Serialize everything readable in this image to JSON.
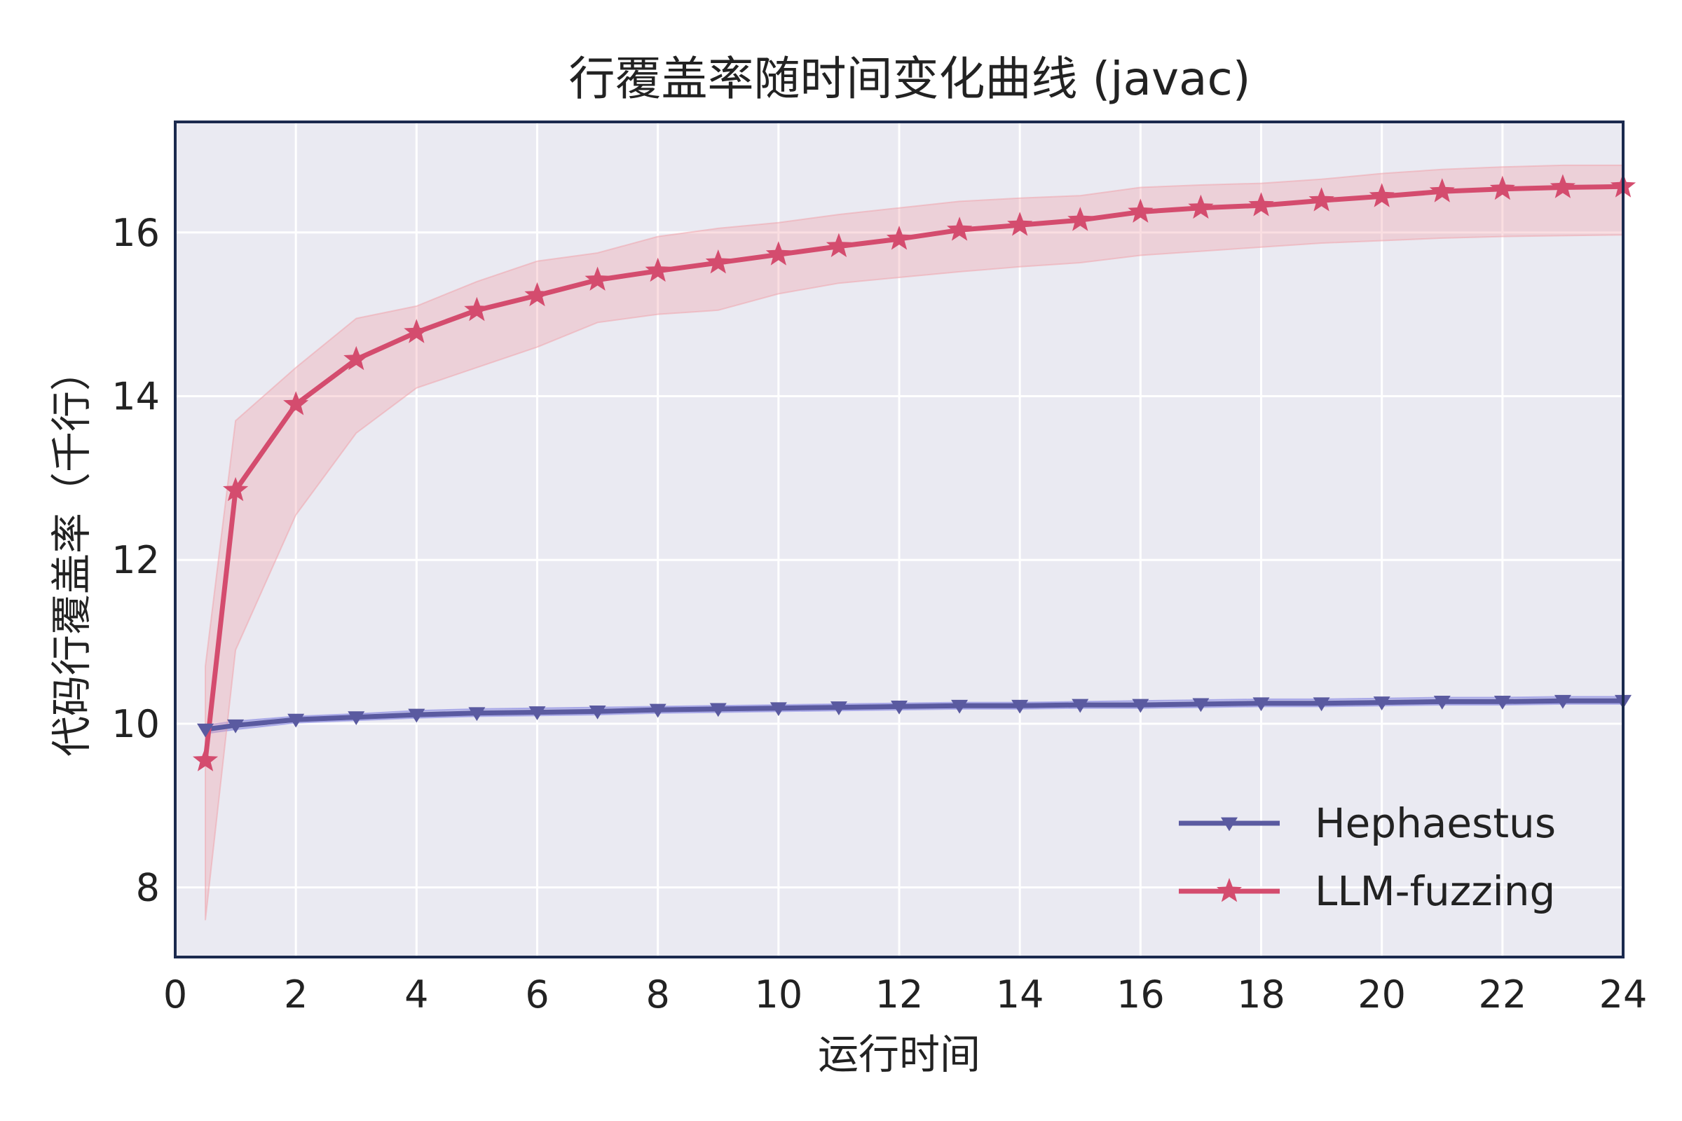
{
  "chart_data": {
    "type": "line",
    "title": "行覆盖率随时间变化曲线 (javac)",
    "xlabel": "运行时间",
    "ylabel": "代码行覆盖率（千行）",
    "xlim": [
      0,
      24
    ],
    "ylim": [
      7.15,
      17.35
    ],
    "xticks": [
      0,
      2,
      4,
      6,
      8,
      10,
      12,
      14,
      16,
      18,
      20,
      22,
      24
    ],
    "yticks": [
      8,
      10,
      12,
      14,
      16
    ],
    "grid": true,
    "legend_position": "lower-right",
    "x": [
      0.5,
      1,
      2,
      3,
      4,
      5,
      6,
      7,
      8,
      9,
      10,
      11,
      12,
      13,
      14,
      15,
      16,
      17,
      18,
      19,
      20,
      21,
      22,
      23,
      24
    ],
    "series": [
      {
        "name": "Hephaestus",
        "color": "#5a5aa0",
        "band_color": "#7b7be0",
        "marker": "triangle-down",
        "values": [
          9.93,
          9.98,
          10.05,
          10.08,
          10.11,
          10.13,
          10.14,
          10.15,
          10.17,
          10.18,
          10.19,
          10.2,
          10.21,
          10.22,
          10.22,
          10.23,
          10.23,
          10.24,
          10.25,
          10.25,
          10.26,
          10.27,
          10.27,
          10.28,
          10.28
        ],
        "band_low": [
          9.88,
          9.93,
          10.01,
          10.04,
          10.07,
          10.09,
          10.1,
          10.11,
          10.13,
          10.14,
          10.15,
          10.16,
          10.17,
          10.18,
          10.18,
          10.19,
          10.19,
          10.2,
          10.21,
          10.21,
          10.22,
          10.23,
          10.23,
          10.24,
          10.24
        ],
        "band_high": [
          9.98,
          10.03,
          10.09,
          10.12,
          10.16,
          10.18,
          10.19,
          10.2,
          10.21,
          10.22,
          10.23,
          10.24,
          10.25,
          10.26,
          10.26,
          10.27,
          10.28,
          10.29,
          10.3,
          10.3,
          10.31,
          10.32,
          10.32,
          10.33,
          10.33
        ]
      },
      {
        "name": "LLM-fuzzing",
        "color": "#d44c6e",
        "band_color": "#f0a0a8",
        "marker": "star",
        "values": [
          9.55,
          12.85,
          13.9,
          14.45,
          14.78,
          15.05,
          15.23,
          15.42,
          15.53,
          15.63,
          15.73,
          15.83,
          15.92,
          16.03,
          16.09,
          16.15,
          16.25,
          16.3,
          16.33,
          16.39,
          16.44,
          16.5,
          16.53,
          16.55,
          16.56
        ],
        "band_low": [
          7.6,
          10.9,
          12.55,
          13.55,
          14.1,
          14.35,
          14.6,
          14.9,
          15.0,
          15.05,
          15.25,
          15.38,
          15.45,
          15.52,
          15.58,
          15.63,
          15.72,
          15.77,
          15.82,
          15.87,
          15.9,
          15.93,
          15.95,
          15.96,
          15.97
        ],
        "band_high": [
          10.7,
          13.7,
          14.35,
          14.95,
          15.1,
          15.4,
          15.65,
          15.75,
          15.95,
          16.05,
          16.12,
          16.22,
          16.3,
          16.38,
          16.42,
          16.45,
          16.55,
          16.58,
          16.6,
          16.65,
          16.72,
          16.77,
          16.8,
          16.82,
          16.82
        ]
      }
    ]
  }
}
